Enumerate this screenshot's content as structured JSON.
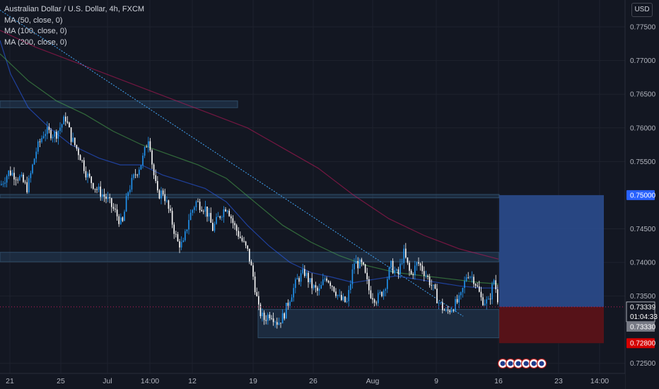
{
  "header": {
    "title": "Australian Dollar / U.S. Dollar, 4h, FXCM",
    "indicators": [
      "MA (50, close, 0)",
      "MA (100, close, 0)",
      "MA (200, close, 0)"
    ],
    "currency": "USD"
  },
  "chart_data": {
    "type": "candlestick",
    "symbol": "AUDUSD",
    "timeframe": "4h",
    "y_range": [
      0.7235,
      0.779
    ],
    "y_ticks": [
      {
        "label": "0.77500",
        "value": 0.775
      },
      {
        "label": "0.77000",
        "value": 0.77
      },
      {
        "label": "0.76500",
        "value": 0.765
      },
      {
        "label": "0.76000",
        "value": 0.76
      },
      {
        "label": "0.75500",
        "value": 0.755
      },
      {
        "label": "0.74500",
        "value": 0.745
      },
      {
        "label": "0.74000",
        "value": 0.74
      },
      {
        "label": "0.73500",
        "value": 0.735
      },
      {
        "label": "0.72500",
        "value": 0.725
      }
    ],
    "x_ticks": [
      "21",
      "25",
      "Jul",
      "14:00",
      "12",
      "19",
      "26",
      "Aug",
      "9",
      "16",
      "23",
      "14:00"
    ],
    "close_path": [
      [
        0,
        0.7515
      ],
      [
        12,
        0.7535
      ],
      [
        28,
        0.7525
      ],
      [
        38,
        0.751
      ],
      [
        50,
        0.7565
      ],
      [
        62,
        0.7595
      ],
      [
        78,
        0.759
      ],
      [
        92,
        0.7615
      ],
      [
        100,
        0.7585
      ],
      [
        112,
        0.756
      ],
      [
        122,
        0.753
      ],
      [
        135,
        0.751
      ],
      [
        150,
        0.7495
      ],
      [
        162,
        0.7475
      ],
      [
        172,
        0.7455
      ],
      [
        180,
        0.7505
      ],
      [
        190,
        0.753
      ],
      [
        200,
        0.755
      ],
      [
        210,
        0.759
      ],
      [
        215,
        0.754
      ],
      [
        222,
        0.75
      ],
      [
        230,
        0.7505
      ],
      [
        240,
        0.747
      ],
      [
        250,
        0.743
      ],
      [
        258,
        0.7425
      ],
      [
        266,
        0.7465
      ],
      [
        276,
        0.749
      ],
      [
        290,
        0.748
      ],
      [
        300,
        0.745
      ],
      [
        310,
        0.747
      ],
      [
        320,
        0.7485
      ],
      [
        330,
        0.7455
      ],
      [
        340,
        0.7435
      ],
      [
        350,
        0.7415
      ],
      [
        358,
        0.7375
      ],
      [
        365,
        0.733
      ],
      [
        372,
        0.7315
      ],
      [
        382,
        0.7325
      ],
      [
        392,
        0.731
      ],
      [
        400,
        0.732
      ],
      [
        410,
        0.735
      ],
      [
        420,
        0.7375
      ],
      [
        430,
        0.7385
      ],
      [
        440,
        0.7365
      ],
      [
        450,
        0.7355
      ],
      [
        460,
        0.738
      ],
      [
        470,
        0.7365
      ],
      [
        480,
        0.7345
      ],
      [
        490,
        0.734
      ],
      [
        500,
        0.74
      ],
      [
        512,
        0.7395
      ],
      [
        522,
        0.7355
      ],
      [
        532,
        0.7345
      ],
      [
        542,
        0.736
      ],
      [
        552,
        0.7395
      ],
      [
        562,
        0.738
      ],
      [
        570,
        0.7415
      ],
      [
        580,
        0.738
      ],
      [
        590,
        0.74
      ],
      [
        600,
        0.7385
      ],
      [
        610,
        0.7365
      ],
      [
        620,
        0.734
      ],
      [
        630,
        0.7325
      ],
      [
        640,
        0.7335
      ],
      [
        650,
        0.7345
      ],
      [
        660,
        0.7385
      ],
      [
        670,
        0.7375
      ],
      [
        680,
        0.7345
      ],
      [
        690,
        0.734
      ],
      [
        698,
        0.7375
      ],
      [
        705,
        0.7335
      ]
    ],
    "moving_averages": [
      {
        "name": "MA (50, close, 0)",
        "color": "#2962ff",
        "points": [
          [
            0,
            0.773
          ],
          [
            15,
            0.768
          ],
          [
            40,
            0.763
          ],
          [
            70,
            0.76
          ],
          [
            100,
            0.7575
          ],
          [
            140,
            0.7555
          ],
          [
            170,
            0.7545
          ],
          [
            200,
            0.7545
          ],
          [
            230,
            0.753
          ],
          [
            260,
            0.752
          ],
          [
            290,
            0.751
          ],
          [
            320,
            0.749
          ],
          [
            350,
            0.7455
          ],
          [
            380,
            0.7425
          ],
          [
            410,
            0.74
          ],
          [
            440,
            0.7385
          ],
          [
            470,
            0.7378
          ],
          [
            500,
            0.737
          ],
          [
            530,
            0.7375
          ],
          [
            560,
            0.738
          ],
          [
            590,
            0.7375
          ],
          [
            620,
            0.737
          ],
          [
            650,
            0.7365
          ],
          [
            680,
            0.7362
          ],
          [
            705,
            0.7362
          ]
        ]
      },
      {
        "name": "MA (100, close, 0)",
        "color": "#4caf50",
        "points": [
          [
            0,
            0.771
          ],
          [
            40,
            0.767
          ],
          [
            80,
            0.764
          ],
          [
            120,
            0.762
          ],
          [
            160,
            0.7595
          ],
          [
            200,
            0.7575
          ],
          [
            240,
            0.756
          ],
          [
            280,
            0.7545
          ],
          [
            320,
            0.7525
          ],
          [
            360,
            0.749
          ],
          [
            400,
            0.7455
          ],
          [
            440,
            0.743
          ],
          [
            480,
            0.741
          ],
          [
            520,
            0.7395
          ],
          [
            560,
            0.7385
          ],
          [
            600,
            0.738
          ],
          [
            640,
            0.7375
          ],
          [
            680,
            0.737
          ],
          [
            705,
            0.7368
          ]
        ]
      },
      {
        "name": "MA (200, close, 0)",
        "color": "#c2185b",
        "points": [
          [
            0,
            0.7745
          ],
          [
            50,
            0.772
          ],
          [
            100,
            0.77
          ],
          [
            150,
            0.768
          ],
          [
            200,
            0.766
          ],
          [
            250,
            0.764
          ],
          [
            300,
            0.762
          ],
          [
            350,
            0.76
          ],
          [
            400,
            0.757
          ],
          [
            450,
            0.754
          ],
          [
            500,
            0.75
          ],
          [
            550,
            0.7465
          ],
          [
            600,
            0.744
          ],
          [
            650,
            0.742
          ],
          [
            705,
            0.7405
          ]
        ]
      }
    ],
    "zones": [
      {
        "name": "resistance-zone-upper",
        "x1": 0,
        "x2": 336,
        "y_top": 0.764,
        "y_bottom": 0.763
      },
      {
        "name": "resistance-line-0750",
        "x1": 0,
        "x2": 706,
        "y_top": 0.7501,
        "y_bottom": 0.7496
      },
      {
        "name": "resistance-zone-mid",
        "x1": 0,
        "x2": 706,
        "y_top": 0.7415,
        "y_bottom": 0.7401
      },
      {
        "name": "support-zone",
        "x1": 365,
        "x2": 706,
        "y_top": 0.733,
        "y_bottom": 0.7288
      }
    ],
    "trendline": {
      "start": [
        0,
        0.7775
      ],
      "end": [
        655,
        0.732
      ],
      "color": "#42a5f5"
    },
    "position": {
      "entry": 0.73339,
      "target": 0.75,
      "stop": 0.728,
      "x1": 706,
      "x2": 854,
      "profit_color": "#2b4b8d",
      "loss_color": "#5a1218"
    },
    "price_labels": {
      "target": "0.75000",
      "current": "0.73339",
      "countdown": "01:04:33",
      "support": "0.73330",
      "stop": "0.72800"
    },
    "events_count": 6
  }
}
